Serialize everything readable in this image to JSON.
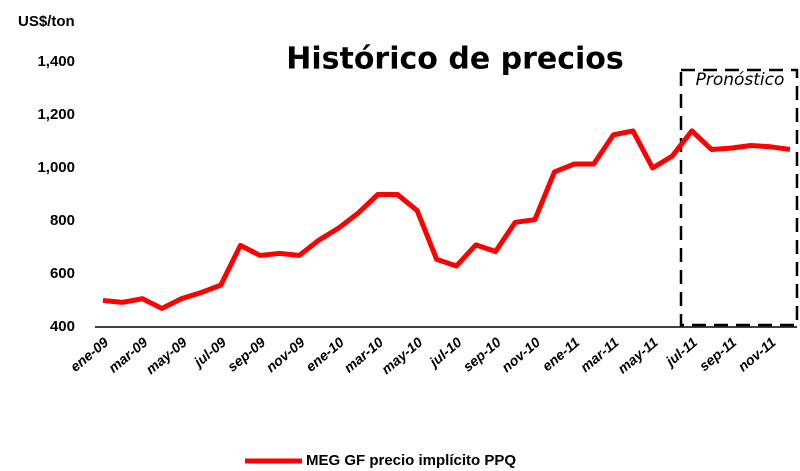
{
  "chart_data": {
    "type": "line",
    "title": "Histórico de precios",
    "y_label": "US$/ton",
    "annotation": "Pronóstico",
    "categories": [
      "ene-09",
      null,
      "mar-09",
      null,
      "may-09",
      null,
      "jul-09",
      null,
      "sep-09",
      null,
      "nov-09",
      null,
      "ene-10",
      null,
      "mar-10",
      null,
      "may-10",
      null,
      "jul-10",
      null,
      "sep-10",
      null,
      "nov-10",
      null,
      "ene-11",
      null,
      "mar-11",
      null,
      "may-11",
      null,
      "jul-11",
      null,
      "sep-11",
      null,
      "nov-11",
      null
    ],
    "series": [
      {
        "name": "MEG GF precio implícito  PPQ",
        "color": "#ff0000",
        "values": [
          500,
          493,
          507,
          470,
          507,
          530,
          558,
          708,
          670,
          678,
          670,
          728,
          773,
          830,
          900,
          900,
          840,
          655,
          630,
          710,
          685,
          795,
          805,
          985,
          1015,
          1015,
          1125,
          1140,
          1000,
          1045,
          1140,
          1070,
          1075,
          1085,
          1080,
          1070
        ]
      }
    ],
    "ylim": [
      400,
      1400
    ],
    "yticks": [
      400,
      600,
      800,
      {
        "value": 1000,
        "label": "1,000"
      },
      {
        "value": 1200,
        "label": "1,200"
      },
      {
        "value": 1400,
        "label": "1,400"
      }
    ],
    "grid": false
  }
}
